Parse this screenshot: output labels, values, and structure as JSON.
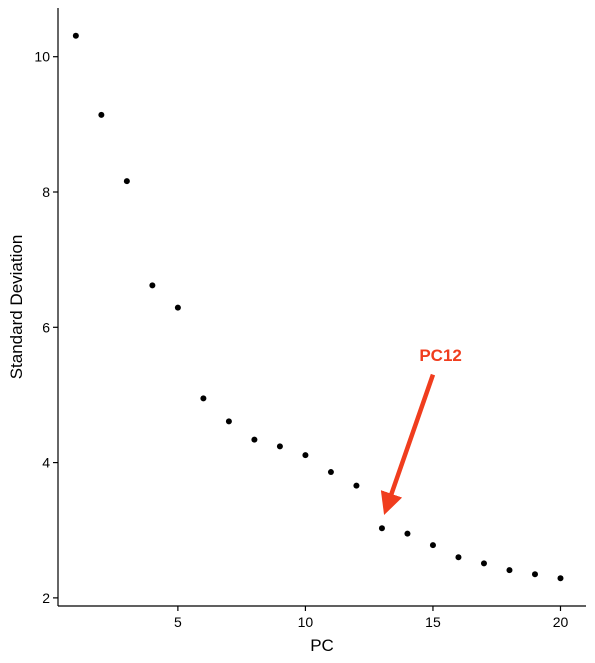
{
  "chart_data": {
    "type": "scatter",
    "title": "",
    "xlabel": "PC",
    "ylabel": "Standard Deviation",
    "xlim": [
      0.3,
      21.0
    ],
    "ylim": [
      1.88,
      10.72
    ],
    "x_ticks": [
      5,
      10,
      15,
      20
    ],
    "y_ticks": [
      2,
      4,
      6,
      8,
      10
    ],
    "grid": false,
    "legend": "none",
    "point_color": "#000000",
    "series": [
      {
        "x": [
          1,
          2,
          3,
          4,
          5,
          6,
          7,
          8,
          9,
          10,
          11,
          12,
          13,
          14,
          15,
          16,
          17,
          18,
          19,
          20
        ],
        "y": [
          10.31,
          9.14,
          8.16,
          6.62,
          6.29,
          4.95,
          4.61,
          4.34,
          4.24,
          4.11,
          3.86,
          3.66,
          3.03,
          2.95,
          2.78,
          2.6,
          2.51,
          2.41,
          2.35,
          2.29
        ]
      }
    ],
    "annotation": {
      "text": "PC12",
      "color": "#f03d1e",
      "text_x": 15.3,
      "text_y": 5.5,
      "arrow_from": [
        15.0,
        5.3
      ],
      "arrow_to": [
        13.2,
        3.35
      ]
    }
  }
}
